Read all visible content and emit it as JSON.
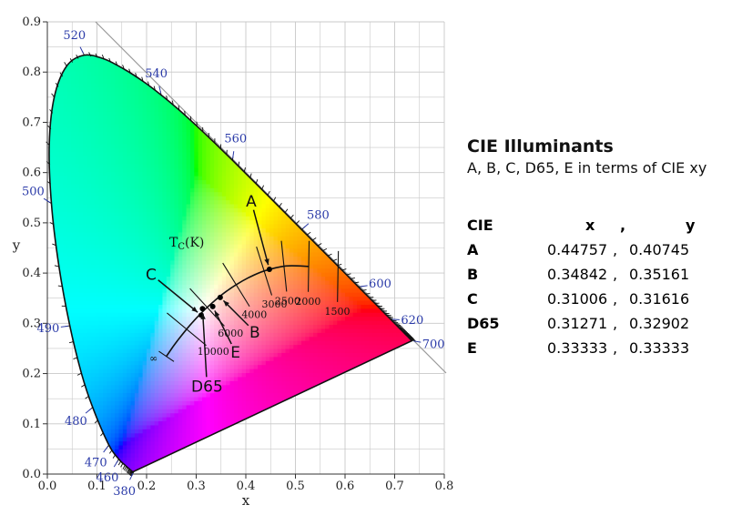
{
  "chart_data": {
    "type": "scatter",
    "xlabel": "x",
    "ylabel": "y",
    "xlim": [
      0,
      0.8
    ],
    "ylim": [
      0,
      0.9
    ],
    "x_ticks": [
      "0.0",
      "0.1",
      "0.2",
      "0.3",
      "0.4",
      "0.5",
      "0.6",
      "0.7",
      "0.8"
    ],
    "y_ticks": [
      "0.0",
      "0.1",
      "0.2",
      "0.3",
      "0.4",
      "0.5",
      "0.6",
      "0.7",
      "0.8",
      "0.9"
    ],
    "grid": true,
    "spectral_locus": [
      [
        0.1741,
        0.005
      ],
      [
        0.1738,
        0.0049
      ],
      [
        0.1736,
        0.0049
      ],
      [
        0.1733,
        0.0048
      ],
      [
        0.1726,
        0.0048
      ],
      [
        0.1714,
        0.0051
      ],
      [
        0.1689,
        0.0069
      ],
      [
        0.1644,
        0.0109
      ],
      [
        0.1566,
        0.0177
      ],
      [
        0.144,
        0.0297
      ],
      [
        0.1241,
        0.0578
      ],
      [
        0.0913,
        0.1327
      ],
      [
        0.0687,
        0.2007
      ],
      [
        0.0454,
        0.295
      ],
      [
        0.0235,
        0.4127
      ],
      [
        0.0082,
        0.5384
      ],
      [
        0.0039,
        0.6548
      ],
      [
        0.0139,
        0.7502
      ],
      [
        0.0389,
        0.812
      ],
      [
        0.0743,
        0.8338
      ],
      [
        0.1142,
        0.8262
      ],
      [
        0.1547,
        0.8059
      ],
      [
        0.1929,
        0.7816
      ],
      [
        0.2296,
        0.7543
      ],
      [
        0.2658,
        0.7243
      ],
      [
        0.3016,
        0.6923
      ],
      [
        0.3373,
        0.6589
      ],
      [
        0.3731,
        0.6245
      ],
      [
        0.4087,
        0.5896
      ],
      [
        0.4441,
        0.5547
      ],
      [
        0.4788,
        0.5202
      ],
      [
        0.5125,
        0.4866
      ],
      [
        0.5448,
        0.4544
      ],
      [
        0.5752,
        0.4242
      ],
      [
        0.6029,
        0.3965
      ],
      [
        0.627,
        0.3725
      ],
      [
        0.6482,
        0.3514
      ],
      [
        0.6658,
        0.334
      ],
      [
        0.6801,
        0.3197
      ],
      [
        0.6915,
        0.3083
      ],
      [
        0.7006,
        0.2993
      ],
      [
        0.7079,
        0.292
      ],
      [
        0.714,
        0.2859
      ],
      [
        0.719,
        0.2809
      ],
      [
        0.723,
        0.277
      ],
      [
        0.726,
        0.274
      ],
      [
        0.7283,
        0.2717
      ],
      [
        0.73,
        0.27
      ],
      [
        0.7347,
        0.2653
      ]
    ],
    "wavelength_labels": [
      {
        "label": "380",
        "x": 0.1741,
        "y": 0.005
      },
      {
        "label": "460",
        "x": 0.144,
        "y": 0.0297
      },
      {
        "label": "470",
        "x": 0.1241,
        "y": 0.0578
      },
      {
        "label": "480",
        "x": 0.0913,
        "y": 0.1327
      },
      {
        "label": "490",
        "x": 0.0454,
        "y": 0.295
      },
      {
        "label": "500",
        "x": 0.0082,
        "y": 0.5384
      },
      {
        "label": "520",
        "x": 0.0743,
        "y": 0.8338
      },
      {
        "label": "540",
        "x": 0.2296,
        "y": 0.7543
      },
      {
        "label": "560",
        "x": 0.3731,
        "y": 0.6245
      },
      {
        "label": "580",
        "x": 0.5125,
        "y": 0.4866
      },
      {
        "label": "600",
        "x": 0.627,
        "y": 0.3725
      },
      {
        "label": "620",
        "x": 0.6915,
        "y": 0.3083
      },
      {
        "label": "700",
        "x": 0.7347,
        "y": 0.2653
      }
    ],
    "planckian_locus": [
      [
        0.5267,
        0.4133
      ],
      [
        0.4806,
        0.4141
      ],
      [
        0.4369,
        0.4041
      ],
      [
        0.4053,
        0.3907
      ],
      [
        0.3805,
        0.3768
      ],
      [
        0.3608,
        0.3636
      ],
      [
        0.3451,
        0.3516
      ],
      [
        0.3221,
        0.3318
      ],
      [
        0.3064,
        0.3166
      ],
      [
        0.2952,
        0.3048
      ],
      [
        0.2807,
        0.2883
      ],
      [
        0.2637,
        0.2673
      ],
      [
        0.2525,
        0.2525
      ],
      [
        0.2399,
        0.2342
      ]
    ],
    "cct_labels": [
      {
        "label": "1500",
        "x": 0.5856,
        "y": 0.3932
      },
      {
        "label": "2000",
        "x": 0.5267,
        "y": 0.4133
      },
      {
        "label": "2500",
        "x": 0.4769,
        "y": 0.4137
      },
      {
        "label": "3000",
        "x": 0.4369,
        "y": 0.4041
      },
      {
        "label": "4000",
        "x": 0.3805,
        "y": 0.3768
      },
      {
        "label": "6000",
        "x": 0.3221,
        "y": 0.3318
      },
      {
        "label": "10000",
        "x": 0.2807,
        "y": 0.2883
      },
      {
        "label": "∞",
        "x": 0.2399,
        "y": 0.2342
      }
    ],
    "tc_label": "T",
    "tc_sub": "C",
    "tc_unit": "(K)",
    "illuminants": [
      {
        "name": "A",
        "x": 0.44757,
        "y": 0.40745
      },
      {
        "name": "B",
        "x": 0.34842,
        "y": 0.35161
      },
      {
        "name": "C",
        "x": 0.31006,
        "y": 0.31616
      },
      {
        "name": "D65",
        "x": 0.31271,
        "y": 0.32902
      },
      {
        "name": "E",
        "x": 0.33333,
        "y": 0.33333
      }
    ]
  },
  "panel": {
    "title": "CIE Illuminants",
    "subtitle": "A, B, C, D65, E in terms of CIE xy",
    "header": {
      "name": "CIE",
      "x": "x",
      "sep": ",",
      "y": "y"
    },
    "rows": [
      {
        "name": "A",
        "x": "0.44757",
        "sep": ",",
        "y": "0.40745"
      },
      {
        "name": "B",
        "x": "0.34842",
        "sep": ",",
        "y": "0.35161"
      },
      {
        "name": "C",
        "x": "0.31006",
        "sep": ",",
        "y": "0.31616"
      },
      {
        "name": "D65",
        "x": "0.31271",
        "sep": ",",
        "y": "0.32902"
      },
      {
        "name": "E",
        "x": "0.33333",
        "sep": ",",
        "y": " 0.33333"
      }
    ]
  }
}
